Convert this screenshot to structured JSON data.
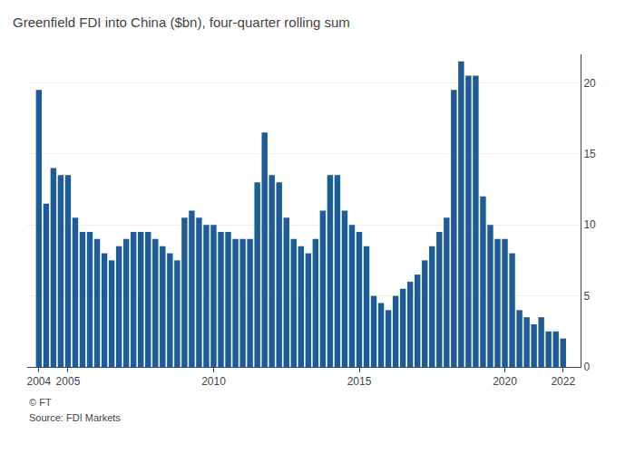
{
  "chart_data": {
    "type": "bar",
    "title": "Greenfield FDI into China ($bn), four-quarter rolling sum",
    "annotations": [
      "© FT",
      "Source: FDI Markets"
    ],
    "color": "#1d5c96",
    "x": [
      2004,
      2004.25,
      2004.5,
      2004.75,
      2005,
      2005.25,
      2005.5,
      2005.75,
      2006,
      2006.25,
      2006.5,
      2006.75,
      2007,
      2007.25,
      2007.5,
      2007.75,
      2008,
      2008.25,
      2008.5,
      2008.75,
      2009,
      2009.25,
      2009.5,
      2009.75,
      2010,
      2010.25,
      2010.5,
      2010.75,
      2011,
      2011.25,
      2011.5,
      2011.75,
      2012,
      2012.25,
      2012.5,
      2012.75,
      2013,
      2013.25,
      2013.5,
      2013.75,
      2014,
      2014.25,
      2014.5,
      2014.75,
      2015,
      2015.25,
      2015.5,
      2015.75,
      2016,
      2016.25,
      2016.5,
      2016.75,
      2017,
      2017.25,
      2017.5,
      2017.75,
      2018,
      2018.25,
      2018.5,
      2018.75,
      2019,
      2019.25,
      2019.5,
      2019.75,
      2020,
      2020.25,
      2020.5,
      2020.75,
      2021,
      2021.25,
      2021.5,
      2021.75,
      2022
    ],
    "values": [
      19.5,
      11.5,
      14.0,
      13.5,
      13.5,
      10.5,
      9.5,
      9.5,
      9.0,
      8.0,
      7.5,
      8.5,
      9.0,
      9.5,
      9.5,
      9.5,
      9.0,
      8.5,
      8.0,
      7.5,
      10.5,
      11.0,
      10.5,
      10.0,
      10.0,
      9.5,
      9.5,
      9.0,
      9.0,
      9.0,
      13.0,
      16.5,
      13.5,
      13.0,
      10.5,
      9.0,
      8.5,
      8.0,
      9.0,
      11.0,
      13.5,
      13.5,
      11.0,
      10.0,
      9.5,
      8.5,
      5.0,
      4.5,
      4.0,
      5.0,
      5.5,
      6.0,
      6.5,
      7.5,
      8.5,
      9.5,
      10.5,
      19.5,
      21.5,
      20.5,
      20.5,
      12.0,
      10.0,
      9.0,
      9.0,
      8.0,
      4.0,
      3.5,
      3.0,
      3.5,
      2.5,
      2.5,
      2.0
    ],
    "xlim": [
      2003.6,
      2022.6
    ],
    "xticks": [
      2004,
      2005,
      2010,
      2015,
      2020,
      2022
    ],
    "ylim": [
      0,
      22
    ],
    "yticks": [
      0,
      5,
      10,
      15,
      20
    ],
    "grid": true
  }
}
